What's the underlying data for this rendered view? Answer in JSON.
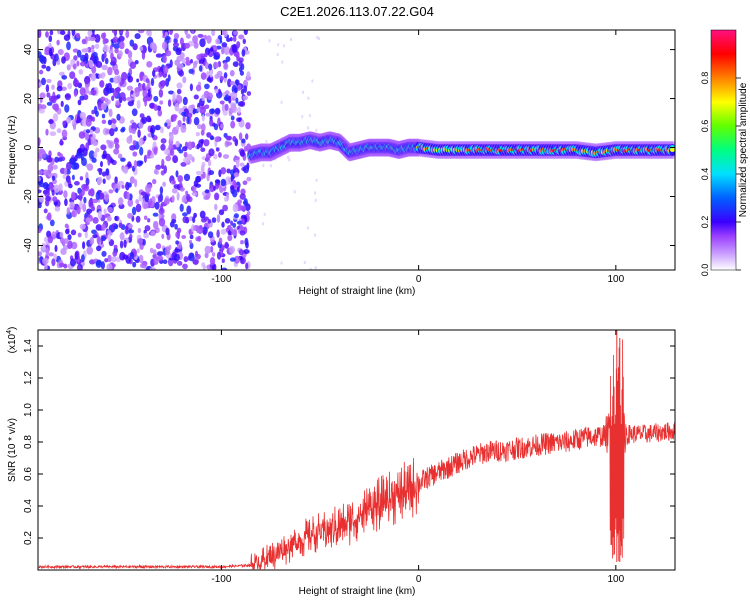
{
  "chart_data": [
    {
      "type": "heatmap",
      "title": "C2E1.2026.113.07.22.G04",
      "xlabel": "Height of straight line (km)",
      "ylabel": "Frequency (Hz)",
      "xlim": [
        -193,
        130
      ],
      "ylim": [
        -50,
        48
      ],
      "xticks": [
        -100,
        0,
        100
      ],
      "yticks": [
        -40,
        -20,
        0,
        20,
        40
      ],
      "colorbar": {
        "label": "Normalized spectral amplitude",
        "range": [
          0,
          1
        ],
        "ticks": [
          0.0,
          0.2,
          0.4,
          0.6,
          0.8
        ],
        "colormap": [
          "#ffffff",
          "#9c40ff",
          "#3a00ff",
          "#0060ff",
          "#00e0ff",
          "#00ff80",
          "#60ff00",
          "#ffff00",
          "#ff8000",
          "#ff0000",
          "#ff1080"
        ]
      },
      "noise_region": {
        "x": [
          -193,
          -86
        ],
        "amplitude": [
          0.05,
          0.25
        ]
      },
      "signal_track": [
        {
          "x": -85,
          "f": -3,
          "amp": 0.45
        },
        {
          "x": -80,
          "f": -2,
          "amp": 0.5
        },
        {
          "x": -75,
          "f": -2,
          "amp": 0.5
        },
        {
          "x": -70,
          "f": 0,
          "amp": 0.55
        },
        {
          "x": -65,
          "f": 2,
          "amp": 0.6
        },
        {
          "x": -60,
          "f": 2,
          "amp": 0.6
        },
        {
          "x": -55,
          "f": 3,
          "amp": 0.55
        },
        {
          "x": -50,
          "f": 2,
          "amp": 0.6
        },
        {
          "x": -45,
          "f": 3,
          "amp": 0.6
        },
        {
          "x": -40,
          "f": 2,
          "amp": 0.55
        },
        {
          "x": -35,
          "f": -2,
          "amp": 0.5
        },
        {
          "x": -30,
          "f": -1,
          "amp": 0.6
        },
        {
          "x": -25,
          "f": 0,
          "amp": 0.65
        },
        {
          "x": -20,
          "f": 0,
          "amp": 0.95
        },
        {
          "x": -15,
          "f": 0,
          "amp": 0.95
        },
        {
          "x": -10,
          "f": -1,
          "amp": 0.6
        },
        {
          "x": -5,
          "f": 0,
          "amp": 0.95
        },
        {
          "x": 0,
          "f": 0,
          "amp": 0.9
        },
        {
          "x": 10,
          "f": -1,
          "amp": 0.7
        },
        {
          "x": 20,
          "f": -1,
          "amp": 0.75
        },
        {
          "x": 30,
          "f": -1,
          "amp": 0.85
        },
        {
          "x": 40,
          "f": -1,
          "amp": 0.9
        },
        {
          "x": 50,
          "f": -1,
          "amp": 0.9
        },
        {
          "x": 60,
          "f": -1,
          "amp": 0.9
        },
        {
          "x": 70,
          "f": -1,
          "amp": 0.9
        },
        {
          "x": 80,
          "f": -1,
          "amp": 0.85
        },
        {
          "x": 90,
          "f": -2,
          "amp": 0.8
        },
        {
          "x": 100,
          "f": -1,
          "amp": 0.85
        },
        {
          "x": 110,
          "f": -1,
          "amp": 0.9
        },
        {
          "x": 120,
          "f": -1,
          "amp": 0.9
        },
        {
          "x": 130,
          "f": -1,
          "amp": 0.7
        }
      ]
    },
    {
      "type": "line",
      "xlabel": "Height of straight line (km)",
      "ylabel": "SNR (10 * v/v)",
      "y_multiplier_label": "(x10",
      "y_multiplier_exp": "4",
      "xlim": [
        -193,
        130
      ],
      "ylim": [
        0,
        1.5
      ],
      "xticks": [
        -100,
        0,
        100
      ],
      "yticks": [
        0.2,
        0.4,
        0.6,
        0.8,
        1.0,
        1.2,
        1.4
      ],
      "color": "#e83030",
      "series_envelope": {
        "x": [
          -193,
          -150,
          -100,
          -85,
          -75,
          -65,
          -55,
          -45,
          -35,
          -25,
          -15,
          -5,
          5,
          15,
          25,
          35,
          45,
          55,
          65,
          75,
          85,
          95,
          98,
          100,
          102,
          105,
          115,
          130
        ],
        "y": [
          0.02,
          0.02,
          0.02,
          0.03,
          0.08,
          0.15,
          0.22,
          0.25,
          0.3,
          0.38,
          0.44,
          0.5,
          0.58,
          0.64,
          0.7,
          0.74,
          0.75,
          0.77,
          0.79,
          0.8,
          0.83,
          0.84,
          0.9,
          0.5,
          0.9,
          0.85,
          0.85,
          0.87
        ]
      }
    }
  ]
}
